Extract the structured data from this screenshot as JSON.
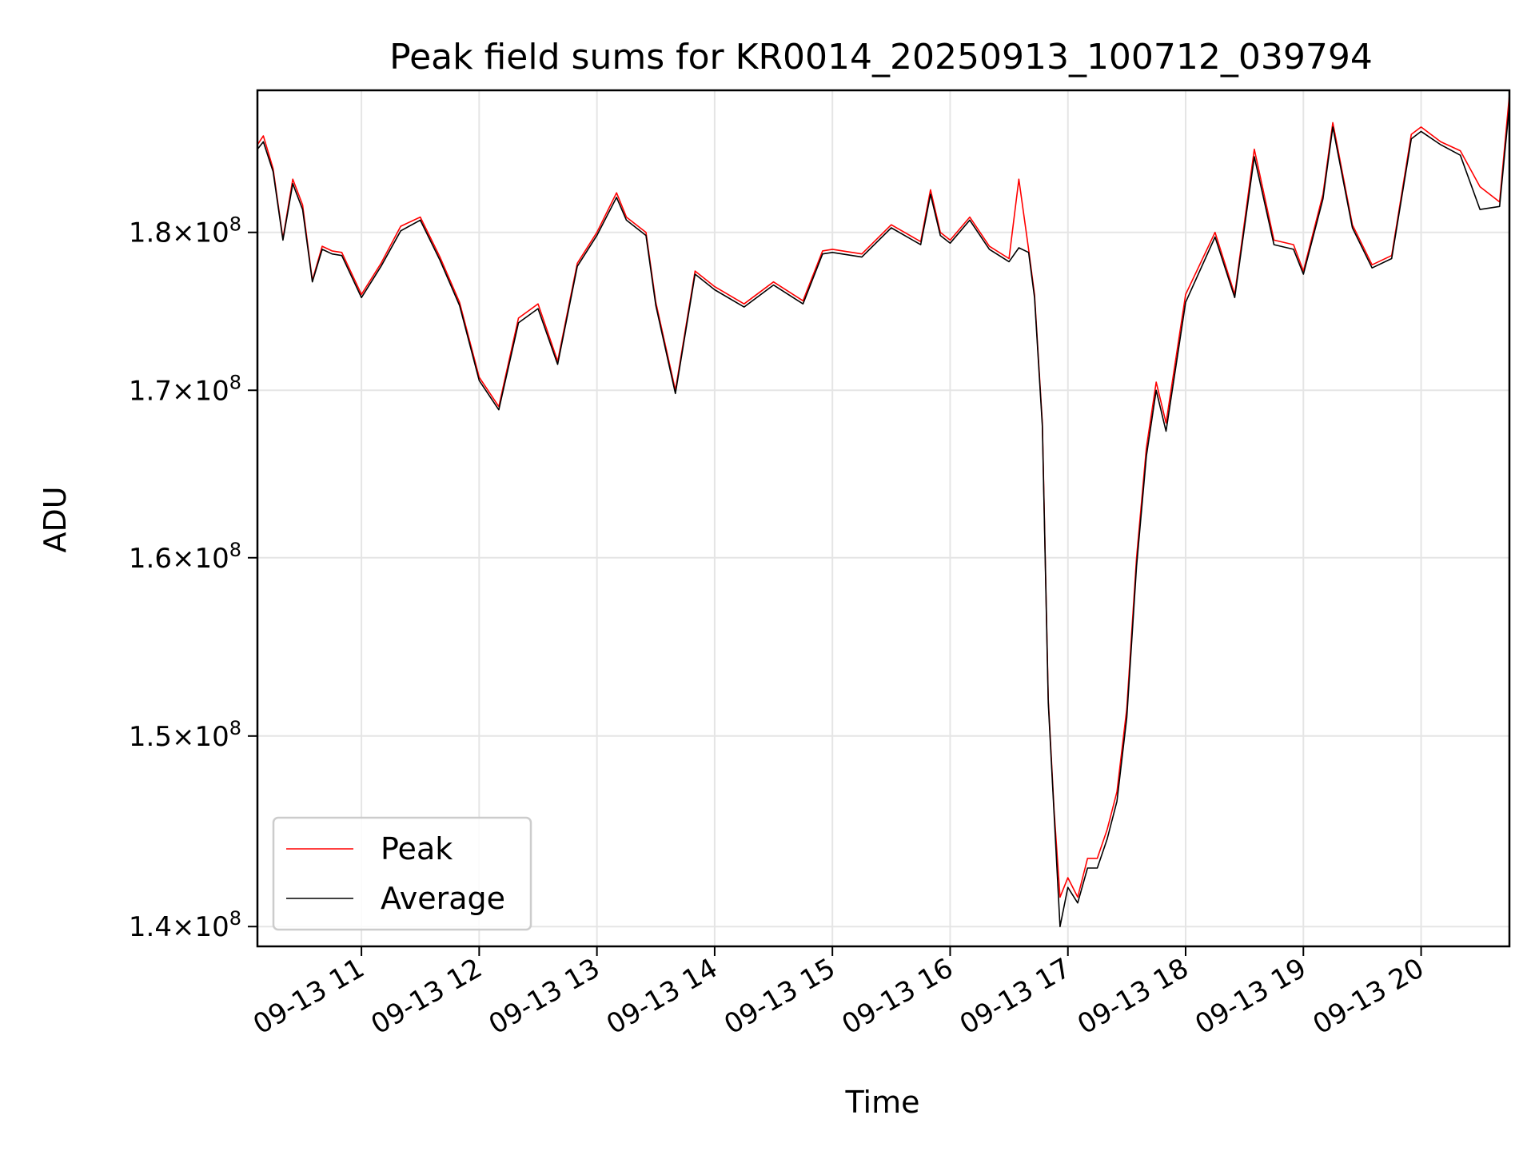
{
  "chart_data": {
    "type": "line",
    "title": "Peak field sums for KR0014_20250913_100712_039794",
    "xlabel": "Time",
    "ylabel": "ADU",
    "y_scale": "log",
    "ylim": [
      139000000,
      189500000
    ],
    "xlim": [
      "09-13 10:07",
      "09-13 20:45"
    ],
    "grid": true,
    "legend_position": "bottom-left",
    "x_ticks": [
      "09-13 11",
      "09-13 12",
      "09-13 13",
      "09-13 14",
      "09-13 15",
      "09-13 16",
      "09-13 17",
      "09-13 18",
      "09-13 19",
      "09-13 20"
    ],
    "y_ticks": [
      {
        "value": 140000000,
        "mantissa": "1.4",
        "exponent": "8"
      },
      {
        "value": 150000000,
        "mantissa": "1.5",
        "exponent": "8"
      },
      {
        "value": 160000000,
        "mantissa": "1.6",
        "exponent": "8"
      },
      {
        "value": 170000000,
        "mantissa": "1.7",
        "exponent": "8"
      },
      {
        "value": 180000000,
        "mantissa": "1.8",
        "exponent": "8"
      }
    ],
    "x": [
      "09-13 10:07",
      "09-13 10:10",
      "09-13 10:15",
      "09-13 10:20",
      "09-13 10:25",
      "09-13 10:30",
      "09-13 10:35",
      "09-13 10:40",
      "09-13 10:45",
      "09-13 10:50",
      "09-13 11:00",
      "09-13 11:10",
      "09-13 11:20",
      "09-13 11:30",
      "09-13 11:40",
      "09-13 11:50",
      "09-13 12:00",
      "09-13 12:10",
      "09-13 12:20",
      "09-13 12:30",
      "09-13 12:40",
      "09-13 12:50",
      "09-13 13:00",
      "09-13 13:10",
      "09-13 13:15",
      "09-13 13:25",
      "09-13 13:30",
      "09-13 13:40",
      "09-13 13:50",
      "09-13 14:00",
      "09-13 14:15",
      "09-13 14:30",
      "09-13 14:45",
      "09-13 14:55",
      "09-13 15:00",
      "09-13 15:15",
      "09-13 15:30",
      "09-13 15:45",
      "09-13 15:50",
      "09-13 15:55",
      "09-13 16:00",
      "09-13 16:10",
      "09-13 16:20",
      "09-13 16:30",
      "09-13 16:35",
      "09-13 16:40",
      "09-13 16:43",
      "09-13 16:47",
      "09-13 16:50",
      "09-13 16:53",
      "09-13 16:56",
      "09-13 17:00",
      "09-13 17:05",
      "09-13 17:10",
      "09-13 17:15",
      "09-13 17:20",
      "09-13 17:25",
      "09-13 17:30",
      "09-13 17:35",
      "09-13 17:40",
      "09-13 17:45",
      "09-13 17:50",
      "09-13 18:00",
      "09-13 18:15",
      "09-13 18:25",
      "09-13 18:35",
      "09-13 18:45",
      "09-13 18:55",
      "09-13 19:00",
      "09-13 19:10",
      "09-13 19:15",
      "09-13 19:25",
      "09-13 19:35",
      "09-13 19:45",
      "09-13 19:55",
      "09-13 20:00",
      "09-13 20:10",
      "09-13 20:20",
      "09-13 20:30",
      "09-13 20:40",
      "09-13 20:45"
    ],
    "series": [
      {
        "name": "Peak",
        "color": "#ff0000",
        "values": [
          185800000,
          186400000,
          184200000,
          179600000,
          183500000,
          181800000,
          176900000,
          179100000,
          178800000,
          178700000,
          176000000,
          178000000,
          180400000,
          181000000,
          178400000,
          175500000,
          170800000,
          169000000,
          174500000,
          175400000,
          171800000,
          178000000,
          180000000,
          182600000,
          181000000,
          180000000,
          175500000,
          170000000,
          177500000,
          176500000,
          175400000,
          176800000,
          175600000,
          178800000,
          178900000,
          178600000,
          180500000,
          179400000,
          182800000,
          180000000,
          179500000,
          181000000,
          179100000,
          178300000,
          183500000,
          178900000,
          176000000,
          168000000,
          152000000,
          146000000,
          141500000,
          142500000,
          141500000,
          143500000,
          143500000,
          145000000,
          147000000,
          151500000,
          160000000,
          166500000,
          170500000,
          168000000,
          176000000,
          180000000,
          176000000,
          185500000,
          179500000,
          179200000,
          177500000,
          182500000,
          187300000,
          180500000,
          177900000,
          178500000,
          186500000,
          187000000,
          186000000,
          185400000,
          183000000,
          182000000,
          189200000
        ]
      },
      {
        "name": "Average",
        "color": "#000000",
        "values": [
          185500000,
          186000000,
          184000000,
          179500000,
          183200000,
          181500000,
          176800000,
          178900000,
          178600000,
          178500000,
          175800000,
          177800000,
          180100000,
          180800000,
          178200000,
          175300000,
          170600000,
          168800000,
          174200000,
          175100000,
          171600000,
          177800000,
          179800000,
          182300000,
          180800000,
          179800000,
          175300000,
          169800000,
          177300000,
          176300000,
          175200000,
          176600000,
          175400000,
          178600000,
          178700000,
          178400000,
          180300000,
          179200000,
          182500000,
          179800000,
          179300000,
          180800000,
          178900000,
          178100000,
          179000000,
          178700000,
          175800000,
          167800000,
          151800000,
          145800000,
          140000000,
          142000000,
          141200000,
          143000000,
          143000000,
          144500000,
          146500000,
          151000000,
          159500000,
          166000000,
          170000000,
          167500000,
          175500000,
          179700000,
          175800000,
          185000000,
          179200000,
          178900000,
          177300000,
          182200000,
          187000000,
          180300000,
          177700000,
          178300000,
          186200000,
          186700000,
          185800000,
          185100000,
          181500000,
          181700000,
          188500000
        ]
      }
    ]
  }
}
